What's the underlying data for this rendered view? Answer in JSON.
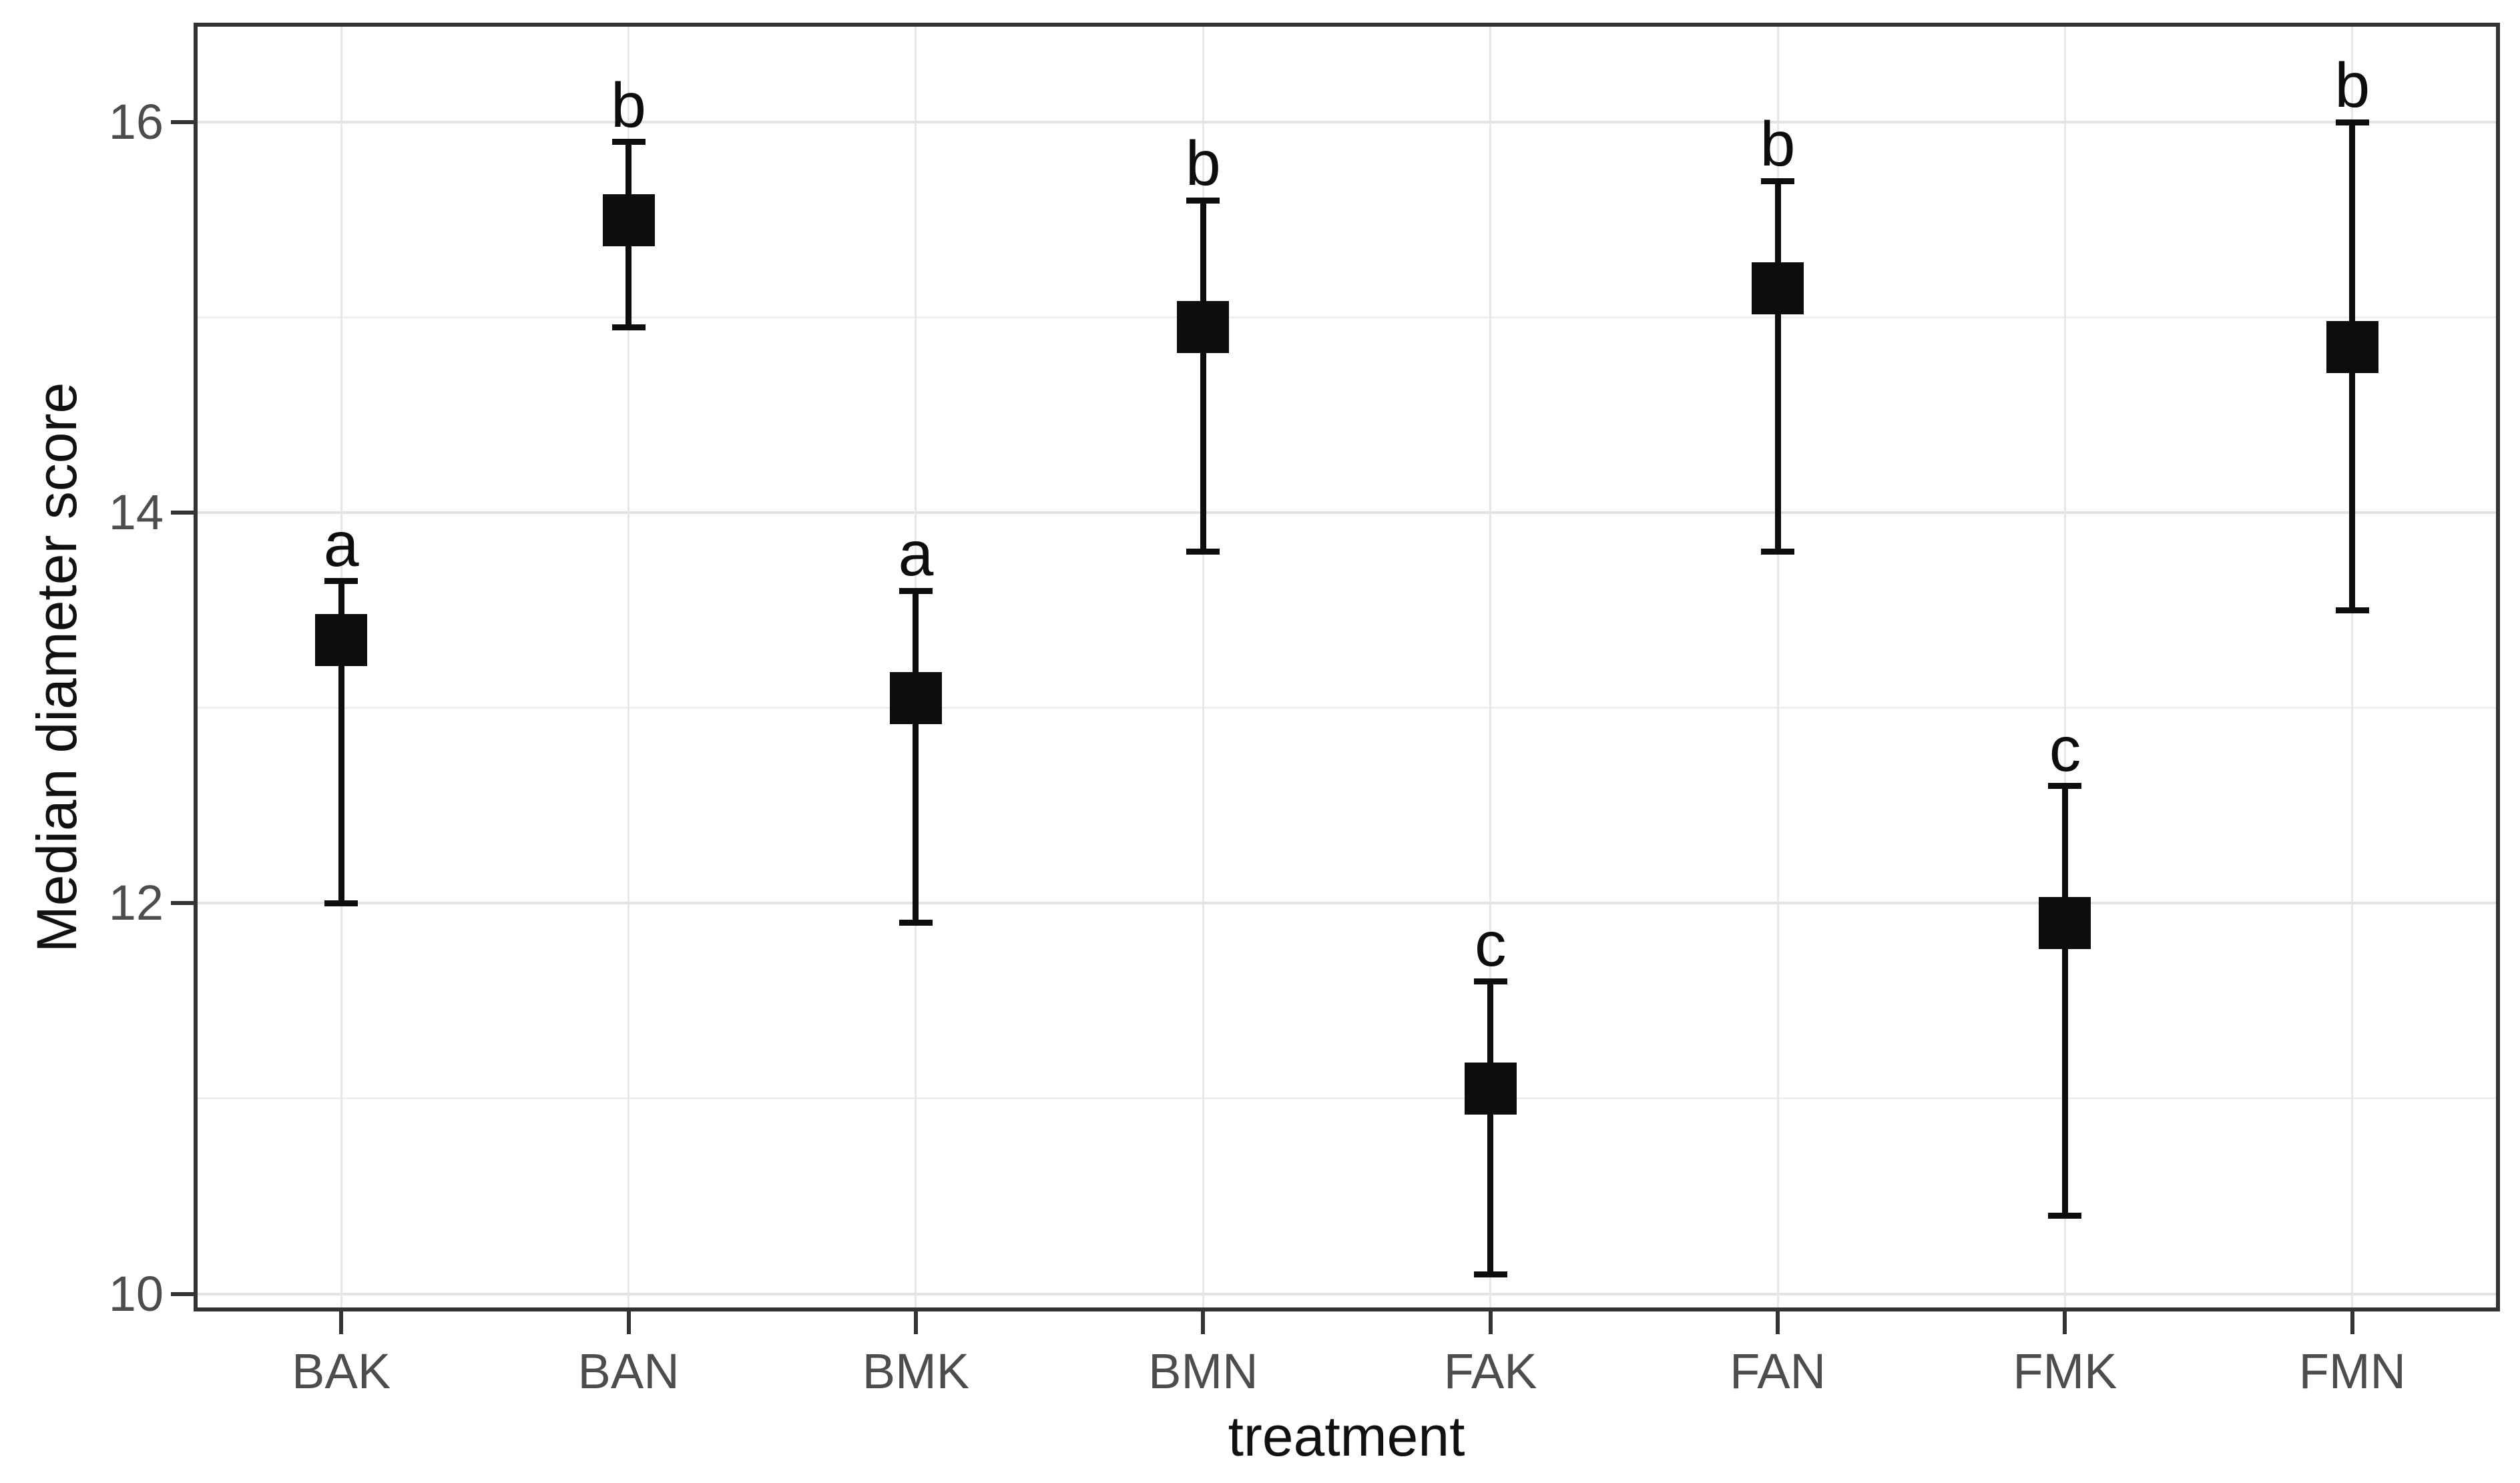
{
  "chart_data": {
    "type": "scatter",
    "subtype": "point-estimates-with-error-bars",
    "title": "",
    "xlabel": "treatment",
    "ylabel": "Median diameter score",
    "categories": [
      "BAK",
      "BAN",
      "BMK",
      "BMN",
      "FAK",
      "FAN",
      "FMK",
      "FMN"
    ],
    "series": [
      {
        "name": "median diameter score",
        "values": [
          13.35,
          15.5,
          13.05,
          14.95,
          11.05,
          15.15,
          11.9,
          14.85
        ],
        "error_low": [
          12.0,
          14.95,
          11.9,
          13.8,
          10.1,
          13.8,
          10.4,
          13.5
        ],
        "error_high": [
          13.65,
          15.9,
          13.6,
          15.6,
          11.6,
          15.7,
          12.6,
          16.0
        ],
        "sig_letters": [
          "a",
          "b",
          "a",
          "b",
          "c",
          "b",
          "c",
          "b"
        ]
      }
    ],
    "yticks": [
      10,
      12,
      14,
      16
    ],
    "yticks_minor": [
      11,
      13,
      15
    ],
    "ylim": [
      9.93,
      16.49
    ],
    "grid": "major-and-minor-horizontal, major-vertical-per-category",
    "legend": false,
    "marker": "filled-black-square",
    "colors": {
      "background": "#ffffff",
      "panel_border": "#333333",
      "grid_major": "#e3e3e3",
      "grid_minor": "#efefef",
      "grid_vertical": "#e7e7e7",
      "tick_label": "#4d4d4d",
      "axis_title": "#111111",
      "marker": "#0d0d0d"
    }
  }
}
